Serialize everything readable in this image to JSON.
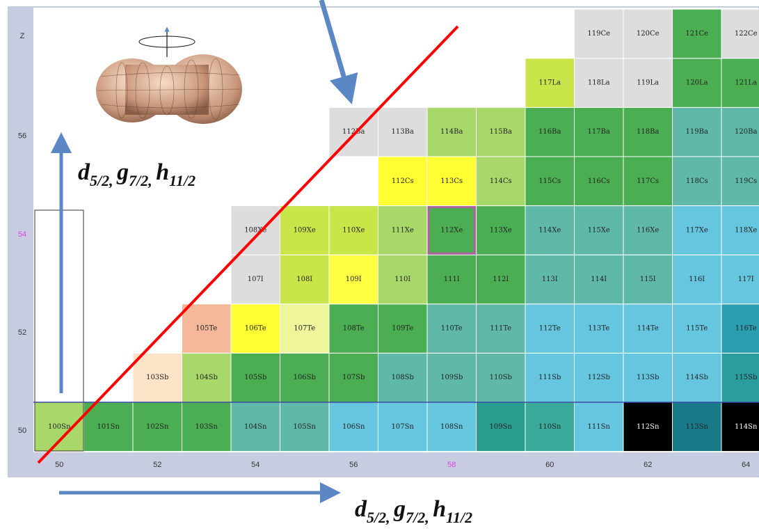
{
  "axis": {
    "z_title": "Z",
    "z_ticks": [
      "50",
      "52",
      "54",
      "56"
    ],
    "n_ticks": [
      "50",
      "52",
      "54",
      "56",
      "58",
      "60",
      "62",
      "64"
    ]
  },
  "rows": [
    {
      "cells": [
        {
          "label": "100Sn",
          "color": "#a8d86a"
        },
        {
          "label": "101Sn",
          "color": "#4cae52"
        },
        {
          "label": "102Sn",
          "color": "#4cae52"
        },
        {
          "label": "103Sn",
          "color": "#4cae52"
        },
        {
          "label": "104Sn",
          "color": "#5fb8a8"
        },
        {
          "label": "105Sn",
          "color": "#5fb8a8"
        },
        {
          "label": "106Sn",
          "color": "#66c6e0"
        },
        {
          "label": "107Sn",
          "color": "#66c6e0"
        },
        {
          "label": "108Sn",
          "color": "#66c6e0"
        },
        {
          "label": "109Sn",
          "color": "#2a9d8f"
        },
        {
          "label": "110Sn",
          "color": "#3aaa9a"
        },
        {
          "label": "111Sn",
          "color": "#66c6e0"
        },
        {
          "label": "112Sn",
          "color": "#000000"
        },
        {
          "label": "113Sn",
          "color": "#1a7a8a"
        },
        {
          "label": "114Sn",
          "color": "#000000"
        }
      ]
    },
    {
      "cells": [
        {
          "label": "103Sb",
          "color": "#fde4c8"
        },
        {
          "label": "104Sb",
          "color": "#a8d86a"
        },
        {
          "label": "105Sb",
          "color": "#4cae52"
        },
        {
          "label": "106Sb",
          "color": "#4cae52"
        },
        {
          "label": "107Sb",
          "color": "#4cae52"
        },
        {
          "label": "108Sb",
          "color": "#5fb8a8"
        },
        {
          "label": "109Sb",
          "color": "#5fb8a8"
        },
        {
          "label": "110Sb",
          "color": "#5fb8a8"
        },
        {
          "label": "111Sb",
          "color": "#66c6e0"
        },
        {
          "label": "112Sb",
          "color": "#66c6e0"
        },
        {
          "label": "113Sb",
          "color": "#66c6e0"
        },
        {
          "label": "114Sb",
          "color": "#66c6e0"
        },
        {
          "label": "115Sb",
          "color": "#2a9d9f"
        }
      ]
    },
    {
      "cells": [
        {
          "label": "105Te",
          "color": "#f6b89a"
        },
        {
          "label": "106Te",
          "color": "#ffff33"
        },
        {
          "label": "107Te",
          "color": "#eef59a"
        },
        {
          "label": "108Te",
          "color": "#4cae52"
        },
        {
          "label": "109Te",
          "color": "#4cae52"
        },
        {
          "label": "110Te",
          "color": "#5fb8a8"
        },
        {
          "label": "111Te",
          "color": "#5fb8a8"
        },
        {
          "label": "112Te",
          "color": "#66c6e0"
        },
        {
          "label": "113Te",
          "color": "#66c6e0"
        },
        {
          "label": "114Te",
          "color": "#66c6e0"
        },
        {
          "label": "115Te",
          "color": "#66c6e0"
        },
        {
          "label": "116Te",
          "color": "#2a9db0"
        }
      ]
    },
    {
      "cells": [
        {
          "label": "107I",
          "color": "#dddddd"
        },
        {
          "label": "108I",
          "color": "#c8e64a"
        },
        {
          "label": "109I",
          "color": "#ffff44"
        },
        {
          "label": "110I",
          "color": "#a8d86a"
        },
        {
          "label": "111I",
          "color": "#4cae52"
        },
        {
          "label": "112I",
          "color": "#4cae52"
        },
        {
          "label": "113I",
          "color": "#5fb8a8"
        },
        {
          "label": "114I",
          "color": "#5fb8a8"
        },
        {
          "label": "115I",
          "color": "#5fb8a8"
        },
        {
          "label": "116I",
          "color": "#66c6e0"
        },
        {
          "label": "117I",
          "color": "#66c6e0"
        }
      ]
    },
    {
      "cells": [
        {
          "label": "108Xe",
          "color": "#dddddd"
        },
        {
          "label": "109Xe",
          "color": "#c8e64a"
        },
        {
          "label": "110Xe",
          "color": "#c8e64a"
        },
        {
          "label": "111Xe",
          "color": "#a8d86a"
        },
        {
          "label": "112Xe",
          "color": "#4cae52"
        },
        {
          "label": "113Xe",
          "color": "#4cae52"
        },
        {
          "label": "114Xe",
          "color": "#5fb8a8"
        },
        {
          "label": "115Xe",
          "color": "#5fb8a8"
        },
        {
          "label": "116Xe",
          "color": "#5fb8a8"
        },
        {
          "label": "117Xe",
          "color": "#66c6e0"
        },
        {
          "label": "118Xe",
          "color": "#66c6e0"
        }
      ]
    },
    {
      "cells": [
        {
          "label": "112Cs",
          "color": "#ffff33"
        },
        {
          "label": "113Cs",
          "color": "#ffff33"
        },
        {
          "label": "114Cs",
          "color": "#a8d86a"
        },
        {
          "label": "115Cs",
          "color": "#4cae52"
        },
        {
          "label": "116Cs",
          "color": "#4cae52"
        },
        {
          "label": "117Cs",
          "color": "#4cae52"
        },
        {
          "label": "118Cs",
          "color": "#5fb8a8"
        },
        {
          "label": "119Cs",
          "color": "#5fb8a8"
        }
      ]
    },
    {
      "cells": [
        {
          "label": "112Ba",
          "color": "#dddddd"
        },
        {
          "label": "113Ba",
          "color": "#dddddd"
        },
        {
          "label": "114Ba",
          "color": "#a8d86a"
        },
        {
          "label": "115Ba",
          "color": "#a8d86a"
        },
        {
          "label": "116Ba",
          "color": "#4cae52"
        },
        {
          "label": "117Ba",
          "color": "#4cae52"
        },
        {
          "label": "118Ba",
          "color": "#4cae52"
        },
        {
          "label": "119Ba",
          "color": "#5fb8a8"
        },
        {
          "label": "120Ba",
          "color": "#5fb8a8"
        }
      ]
    },
    {
      "cells": [
        {
          "label": "117La",
          "color": "#c8e64a"
        },
        {
          "label": "118La",
          "color": "#dddddd"
        },
        {
          "label": "119La",
          "color": "#dddddd"
        },
        {
          "label": "120La",
          "color": "#4cae52"
        },
        {
          "label": "121La",
          "color": "#4cae52"
        }
      ]
    },
    {
      "cells": [
        {
          "label": "119Ce",
          "color": "#dddddd"
        },
        {
          "label": "120Ce",
          "color": "#dddddd"
        },
        {
          "label": "121Ce",
          "color": "#4cae52"
        },
        {
          "label": "122Ce",
          "color": "#dddddd"
        }
      ]
    }
  ],
  "annotations": [
    {
      "parts": [
        {
          "letter": "d",
          "sub": "5/2, "
        },
        {
          "letter": "g",
          "sub": "7/2, "
        },
        {
          "letter": "h",
          "sub": "11/2"
        }
      ]
    },
    {
      "parts": [
        {
          "letter": "d",
          "sub": "5/2, "
        },
        {
          "letter": "g",
          "sub": "7/2, "
        },
        {
          "letter": "h",
          "sub": "11/2"
        }
      ]
    }
  ]
}
